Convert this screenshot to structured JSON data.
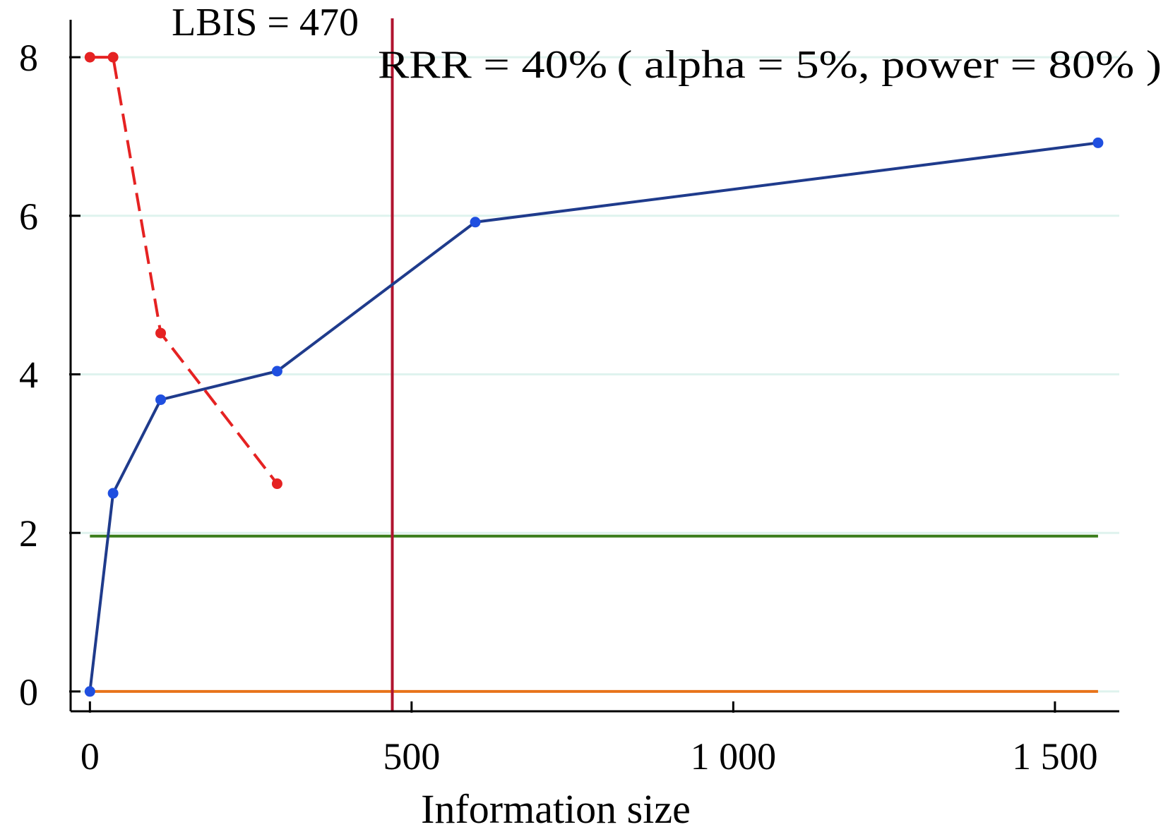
{
  "chart_data": {
    "type": "line",
    "xlabel": "Information size",
    "ylabel": "",
    "xlim": [
      -30,
      1600
    ],
    "ylim": [
      -0.25,
      8.25
    ],
    "x_ticks": [
      {
        "value": 0,
        "label": "0"
      },
      {
        "value": 500,
        "label": "500"
      },
      {
        "value": 1000,
        "label": "1 000"
      },
      {
        "value": 1500,
        "label": "1 500"
      }
    ],
    "y_ticks": [
      {
        "value": 0,
        "label": "0"
      },
      {
        "value": 2,
        "label": "2"
      },
      {
        "value": 4,
        "label": "4"
      },
      {
        "value": 6,
        "label": "6"
      },
      {
        "value": 8,
        "label": "8"
      }
    ],
    "grid": "horizontal",
    "series": [
      {
        "color": "#1f3b8c",
        "marker_color": "#1f4fe0",
        "dash": "solid",
        "points": [
          {
            "x": 0,
            "y": 0
          },
          {
            "x": 36,
            "y": 2.5
          },
          {
            "x": 110,
            "y": 3.68
          },
          {
            "x": 291,
            "y": 4.04
          },
          {
            "x": 599,
            "y": 5.92
          },
          {
            "x": 1567,
            "y": 6.92
          }
        ]
      },
      {
        "color": "#e52222",
        "marker_color": "#e52222",
        "dash": "dashed",
        "points": [
          {
            "x": 0,
            "y": 8
          },
          {
            "x": 36,
            "y": 8
          },
          {
            "x": 110,
            "y": 4.52
          },
          {
            "x": 291,
            "y": 2.62
          }
        ]
      }
    ],
    "reference_lines": [
      {
        "orientation": "horizontal",
        "value": 1.96,
        "x_from": 0,
        "x_to": 1567,
        "color": "#3a7d1a"
      },
      {
        "orientation": "horizontal",
        "value": 0,
        "x_from": 0,
        "x_to": 1567,
        "color": "#e8731a"
      },
      {
        "orientation": "vertical",
        "value": 470,
        "color": "#b0132e"
      }
    ],
    "annotations": [
      {
        "text": "LBIS = 470"
      },
      {
        "text": "RRR = 40% ( alpha = 5%, power = 80% )"
      }
    ]
  }
}
